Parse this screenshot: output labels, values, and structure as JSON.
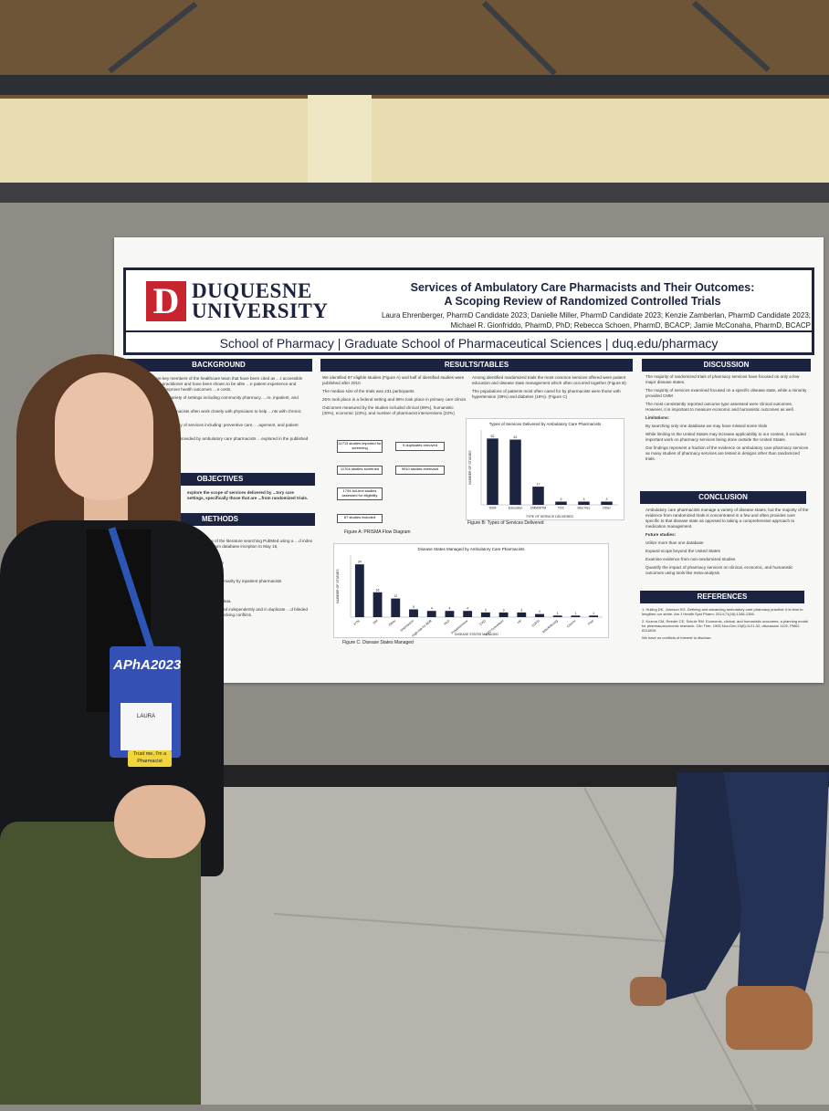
{
  "poster": {
    "logo_letter": "D",
    "logo_line1": "DUQUESNE",
    "logo_line2": "UNIVERSITY",
    "title_line1": "Services of Ambulatory Care Pharmacists and Their Outcomes:",
    "title_line2": "A Scoping Review of Randomized Controlled Trials",
    "authors_line1": "Laura Ehrenberger, PharmD Candidate 2023; Danielle Miller, PharmD Candidate 2023; Kenzie Zamberlan, PharmD Candidate 2023;",
    "authors_line2": "Michael R. Gionfriddo, PharmD, PhD; Rebecca Schoen, PharmD, BCACP; Jamie McConaha, PharmD, BCACP",
    "footer": "School of Pharmacy  |  Graduate School of Pharmaceutical Sciences  |  duq.edu/pharmacy",
    "sections": {
      "background": "BACKGROUND",
      "objectives": "OBJECTIVES",
      "methods": "METHODS",
      "results": "RESULTS/TABLES",
      "discussion": "DISCUSSION",
      "conclusion": "CONCLUSION",
      "references": "REFERENCES"
    },
    "results_text": {
      "r1": "We identified 87 eligible studies (Figure A) and half of identified studies were published after 2010",
      "r2": "The median size of the trials was 231 participants",
      "r3": "25% took place in a federal setting and 85% took place in primary care clinics",
      "r4": "Outcomes measured by the studies included clinical (89%), humanistic (30%), economic (23%), and number of pharmacist interventions (22%)",
      "r5": "Among identified randomized trials the most common services offered were patient education and disease state management which often occurred together (Figure B)",
      "r6": "The populations of patients most often cared for by pharmacists were those with hypertension (39%) and diabetes (18%). (Figure C)"
    },
    "flow": {
      "b1": "11713 studies imported for screening",
      "b2": "9 duplicates removed",
      "b3": "11704 studies screened",
      "b4": "9910 studies irrelevant",
      "b5": "1794 full-text studies assessed for eligibility",
      "b6": "87 studies included",
      "caption": "Figure A: PRISMA Flow Diagram"
    },
    "figB": {
      "title": "Types of Services Delivered by Ambulatory Care Pharmacists",
      "caption": "Figure B: Types of Services Delivered",
      "xlabel": "TYPE OF SERVICE DELIVERED",
      "ylabel": "NUMBER OF STUDIES"
    },
    "figC": {
      "title": "Disease States Managed by Ambulatory Care Pharmacists",
      "caption": "Figure C: Disease States Managed",
      "xlabel": "DISEASE STATES MANAGED",
      "ylabel": "NUMBER OF STUDIES"
    },
    "discussion_text": {
      "d1": "The majority of randomized trials of pharmacy services have focused on only a few major disease states.",
      "d2": "The majority of services examined focused on a specific disease state, while a minority provided CMM",
      "d3": "The most consistently reported outcome type assessed were clinical outcomes. However, it is important to measure economic and humanistic outcomes as well.",
      "limitations": "Limitations:",
      "l1": "By searching only one database we may have missed some trials",
      "l2": "While limiting to the United States may increase applicability to our context, it excluded important work on pharmacy services being done outside the United States.",
      "l3": "Our findings represent a fraction of the evidence on ambulatory care pharmacy services as many studies of pharmacy services are tested in designs other than randomized trials."
    },
    "conclusion_text": {
      "c1": "Ambulatory care pharmacists manage a variety of disease states, but the majority of the evidence from randomized trials is concentrated in a few and often provides care specific to that disease state as opposed to taking a comprehensive approach to medication management.",
      "future": "Future studies:",
      "f1": "Utilize more than one database",
      "f2": "Expand scope beyond the United States",
      "f3": "Examine evidence from non-randomized studies",
      "f4": "Quantify the impact of pharmacy services on clinical, economic, and humanistic outcomes using tools like meta-analysis"
    },
    "references_text": {
      "ref1": "1. Huiling DK, Johnson SG. Defining and advancing ambulatory care pharmacy practice: it is time to lengthen our stride. Am J Health Syst Pharm. 2014;71(16):1348-1356.",
      "ref2": "2. Kozma CM, Reeder CE, Schulz RM. Economic, clinical, and humanistic outcomes: a planning model for pharmacoeconomic research. Clin Ther. 1993 Nov-Dec;15(6):1121-32; discussion 1120. PMID: 8111809.",
      "ref3": "We have no conflicts of interest to disclose."
    },
    "objectives_text": "explore the scope of services delivered by ...tory care settings, specifically those that are ...from randomized trials."
  },
  "badge": {
    "brand": "APhA2023",
    "name": "LAURA",
    "strip": "Trust me, I'm a Pharmacist"
  },
  "chart_data": [
    {
      "type": "bar",
      "title": "Types of Services Delivered by Ambulatory Care Pharmacists",
      "xlabel": "TYPE OF SERVICE DELIVERED",
      "ylabel": "NUMBER OF STUDIES",
      "categories": [
        "DSM",
        "Education",
        "CMM/MTM",
        "TOC",
        "Med Rec",
        "Other"
      ],
      "values": [
        62,
        61,
        17,
        3,
        3,
        3
      ],
      "ylim": [
        0,
        70
      ]
    },
    {
      "type": "bar",
      "title": "Disease States Managed by Ambulatory Care Pharmacists",
      "xlabel": "DISEASE STATES MANAGED",
      "ylabel": "NUMBER OF STUDIES",
      "categories": [
        "HTN",
        "DM",
        "Other",
        "Depression",
        "High-risk for ADR",
        "HLD",
        "Polypharmacy",
        "CKD",
        "CVD Prevention",
        "HF",
        "COPD",
        "Afib/Anticoag",
        "Cancer",
        "Pain"
      ],
      "values": [
        34,
        16,
        12,
        5,
        4,
        4,
        4,
        3,
        3,
        3,
        2,
        1,
        1,
        1
      ],
      "ylim": [
        0,
        40
      ]
    }
  ]
}
